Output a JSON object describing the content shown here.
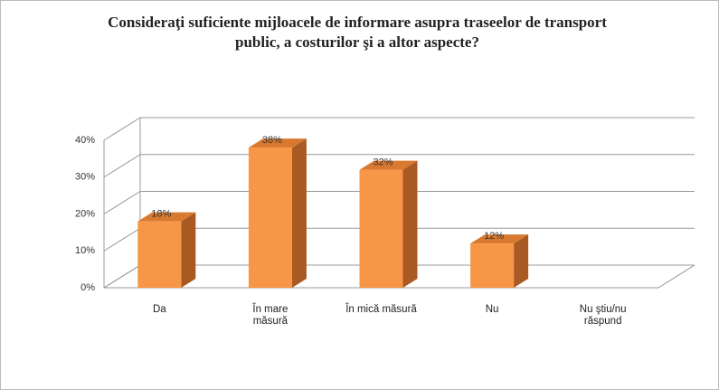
{
  "chart_data": {
    "type": "bar3d",
    "title": "Consideraţi suficiente mijloacele de informare asupra traseelor de transport public, a costurilor şi a altor aspecte?",
    "categories": [
      "Da",
      "În mare măsură",
      "În mică măsură",
      "Nu",
      "Nu ştiu/nu răspund"
    ],
    "values": [
      18,
      38,
      32,
      12,
      null
    ],
    "value_labels": [
      "18%",
      "38%",
      "32%",
      "12%",
      null
    ],
    "color": "#f79646",
    "ylim": [
      0,
      40
    ],
    "yticks": [
      {
        "value": 0,
        "label": "0%"
      },
      {
        "value": 10,
        "label": "10%"
      },
      {
        "value": 20,
        "label": "20%"
      },
      {
        "value": 30,
        "label": "30%"
      },
      {
        "value": 40,
        "label": "40%"
      }
    ],
    "grid": true
  }
}
